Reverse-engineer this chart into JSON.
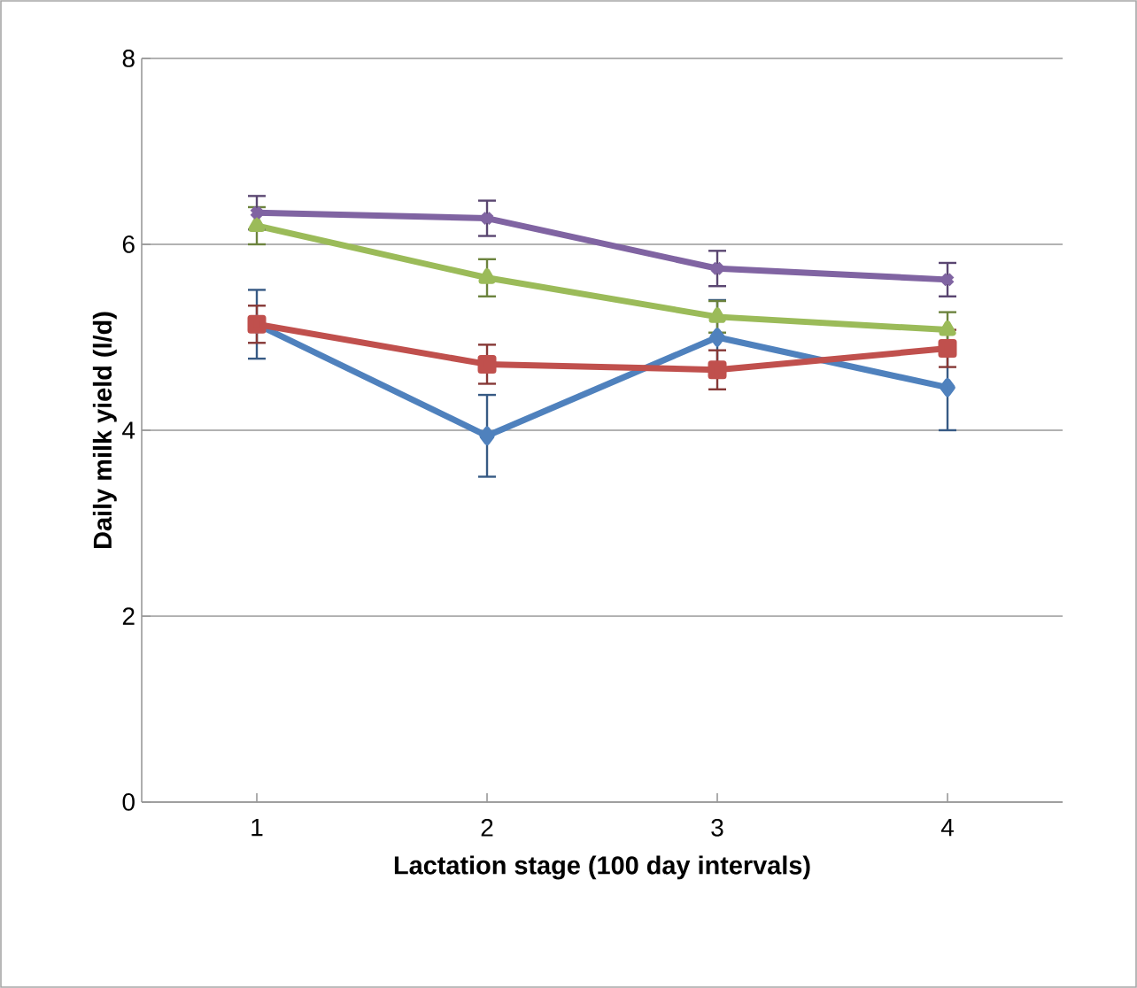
{
  "chart_data": {
    "type": "line",
    "xlabel": "Lactation stage (100 day intervals)",
    "ylabel": "Daily milk yield (l/d)",
    "categories": [
      "1",
      "2",
      "3",
      "4"
    ],
    "series": [
      {
        "color": "#4f81bd",
        "marker": "diamond",
        "values": [
          5.14,
          3.94,
          5.0,
          4.46
        ],
        "errors": [
          0.37,
          0.44,
          0.4,
          0.46
        ]
      },
      {
        "color": "#c0504d",
        "marker": "square",
        "values": [
          5.14,
          4.71,
          4.65,
          4.88
        ],
        "errors": [
          0.2,
          0.21,
          0.21,
          0.2
        ]
      },
      {
        "color": "#9bbb59",
        "marker": "triangle",
        "values": [
          6.2,
          5.64,
          5.22,
          5.08
        ],
        "errors": [
          0.2,
          0.2,
          0.17,
          0.19
        ]
      },
      {
        "color": "#8064a2",
        "marker": "cross",
        "values": [
          6.34,
          6.28,
          5.74,
          5.62
        ],
        "errors": [
          0.18,
          0.19,
          0.19,
          0.18
        ]
      }
    ],
    "ylim": [
      0,
      8
    ],
    "yticks": [
      0,
      2,
      4,
      6,
      8
    ],
    "grid": "y"
  }
}
